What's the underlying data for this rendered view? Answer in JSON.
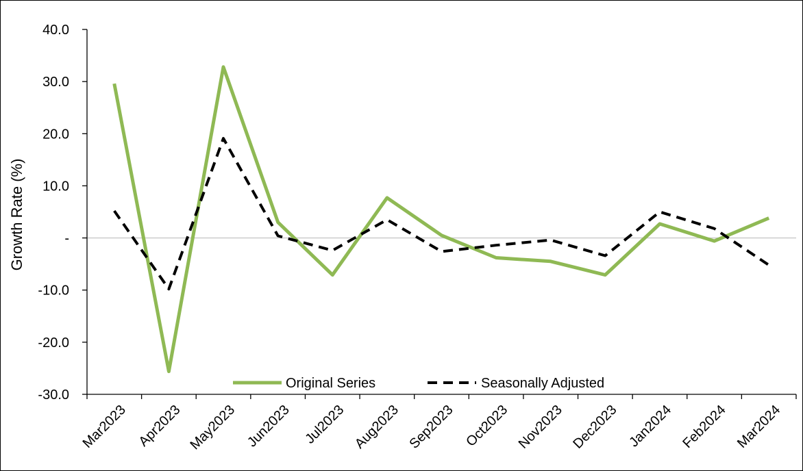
{
  "chart_data": {
    "type": "line",
    "title": "",
    "xlabel": "",
    "ylabel": "Growth Rate (%)",
    "ylim": [
      -30,
      40
    ],
    "y_ticks": [
      {
        "value": 40,
        "label": "40.0"
      },
      {
        "value": 30,
        "label": "30.0"
      },
      {
        "value": 20,
        "label": "20.0"
      },
      {
        "value": 10,
        "label": "10.0"
      },
      {
        "value": 0,
        "label": "-"
      },
      {
        "value": -10,
        "label": "-10.0"
      },
      {
        "value": -20,
        "label": "-20.0"
      },
      {
        "value": -30,
        "label": "-30.0"
      }
    ],
    "categories": [
      "Mar2023",
      "Apr2023",
      "May2023",
      "Jun2023",
      "Jul2023",
      "Aug2023",
      "Sep2023",
      "Oct2023",
      "Nov2023",
      "Dec2023",
      "Jan2024",
      "Feb2024",
      "Mar2024"
    ],
    "series": [
      {
        "name": "Original Series",
        "color": "#8fb954",
        "style": "solid",
        "values": [
          29.6,
          -25.6,
          32.8,
          3.0,
          -7.1,
          7.7,
          0.5,
          -3.8,
          -4.5,
          -7.1,
          2.7,
          -0.6,
          3.8
        ]
      },
      {
        "name": "Seasonally Adjusted",
        "color": "#000000",
        "style": "dashed",
        "values": [
          5.2,
          -9.8,
          19.1,
          0.4,
          -2.4,
          3.5,
          -2.6,
          -1.4,
          -0.4,
          -3.4,
          5.0,
          1.8,
          -5.2
        ]
      }
    ],
    "zero_line": true,
    "grid": false,
    "legend_position": "bottom-center"
  }
}
